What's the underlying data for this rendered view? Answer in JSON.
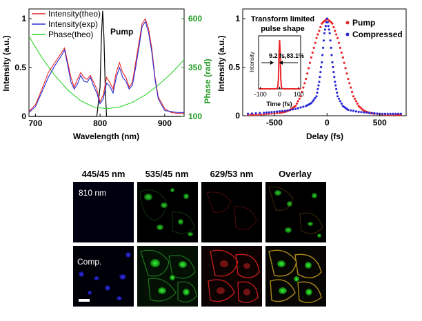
{
  "chart_data": [
    {
      "type": "line",
      "xlabel": "Wavelength (nm)",
      "ylabel": "Intensity (a.u.)",
      "ylabel_right": "Phase (rad)",
      "xlim": [
        690,
        930
      ],
      "ylim": [
        0,
        1.1
      ],
      "ylim_right": [
        100,
        650
      ],
      "x_ticks": [
        700,
        800,
        900
      ],
      "y_ticks": [
        0,
        0.5,
        1
      ],
      "y_tick_labels": [
        "0",
        "0.5",
        "1"
      ],
      "y_right_ticks": [
        100,
        350,
        600
      ],
      "legend_position": "top-left",
      "annotation": "Pump",
      "series": [
        {
          "name": "Intensity(theo)",
          "color": "#e8262a",
          "x": [
            690,
            700,
            710,
            720,
            730,
            740,
            745,
            750,
            755,
            760,
            765,
            770,
            775,
            780,
            785,
            790,
            795,
            800,
            805,
            810,
            815,
            820,
            825,
            830,
            835,
            840,
            845,
            850,
            855,
            860,
            865,
            870,
            875,
            880,
            885,
            890,
            900,
            910,
            920,
            930
          ],
          "y": [
            0.05,
            0.12,
            0.28,
            0.45,
            0.55,
            0.65,
            0.7,
            0.55,
            0.4,
            0.3,
            0.38,
            0.45,
            0.4,
            0.38,
            0.42,
            0.35,
            0.28,
            0.15,
            0.22,
            0.4,
            0.35,
            0.28,
            0.45,
            0.55,
            0.45,
            0.4,
            0.3,
            0.35,
            0.55,
            0.75,
            0.95,
            1.0,
            0.9,
            0.7,
            0.4,
            0.2,
            0.08,
            0.04,
            0.03,
            0.03
          ]
        },
        {
          "name": "Intensity(exp)",
          "color": "#2a2ad4",
          "x": [
            690,
            700,
            710,
            720,
            730,
            740,
            745,
            750,
            755,
            760,
            765,
            770,
            775,
            780,
            785,
            790,
            795,
            800,
            805,
            810,
            815,
            820,
            825,
            830,
            835,
            840,
            845,
            850,
            855,
            860,
            865,
            870,
            875,
            880,
            885,
            890,
            900,
            910,
            920,
            930
          ],
          "y": [
            0.04,
            0.1,
            0.25,
            0.4,
            0.52,
            0.62,
            0.68,
            0.52,
            0.35,
            0.28,
            0.33,
            0.42,
            0.36,
            0.35,
            0.4,
            0.31,
            0.24,
            0.13,
            0.18,
            0.34,
            0.31,
            0.24,
            0.4,
            0.5,
            0.4,
            0.36,
            0.28,
            0.32,
            0.5,
            0.7,
            0.92,
            0.97,
            0.86,
            0.66,
            0.38,
            0.18,
            0.06,
            0.05,
            0.04,
            0.04
          ]
        },
        {
          "name": "Phase(theo)",
          "color": "#2fd42f",
          "axis": "right",
          "x": [
            690,
            710,
            730,
            750,
            770,
            790,
            810,
            830,
            850,
            870,
            890,
            910,
            930
          ],
          "y": [
            510,
            400,
            310,
            235,
            180,
            148,
            140,
            148,
            172,
            210,
            260,
            320,
            390
          ]
        },
        {
          "name": "",
          "color": "#000000",
          "x": [
            690,
            790,
            795,
            800,
            802,
            804,
            806,
            808,
            810,
            815,
            820,
            930
          ],
          "y": [
            0,
            0,
            0,
            0.3,
            0.8,
            1.08,
            0.8,
            0.3,
            0,
            0,
            0,
            0
          ]
        }
      ]
    },
    {
      "type": "scatter",
      "xlabel": "Delay (fs)",
      "ylabel": "Intensity (a.u.)",
      "xlim": [
        -800,
        750
      ],
      "ylim": [
        0,
        1.1
      ],
      "x_ticks": [
        -500,
        0,
        500
      ],
      "y_ticks": [
        0,
        0.5,
        1
      ],
      "y_tick_labels": [
        "0",
        "0.5",
        "1"
      ],
      "legend_position": "top-right",
      "series": [
        {
          "name": "Pump",
          "color": "#e8262a",
          "x": [
            -750,
            -650,
            -550,
            -450,
            -400,
            -350,
            -300,
            -250,
            -200,
            -150,
            -100,
            -50,
            0,
            50,
            100,
            150,
            200,
            250,
            300,
            350,
            400,
            450,
            550,
            650,
            700
          ],
          "y": [
            0.01,
            0.01,
            0.02,
            0.03,
            0.04,
            0.06,
            0.1,
            0.2,
            0.38,
            0.6,
            0.8,
            0.95,
            1.0,
            0.95,
            0.8,
            0.6,
            0.38,
            0.2,
            0.1,
            0.05,
            0.03,
            0.02,
            0.01,
            0.01,
            0.01
          ]
        },
        {
          "name": "Compressed",
          "color": "#2a2ad4",
          "x": [
            -750,
            -600,
            -500,
            -400,
            -300,
            -200,
            -150,
            -100,
            -75,
            -50,
            -25,
            0,
            25,
            50,
            75,
            100,
            150,
            200,
            300,
            400,
            500,
            600,
            700
          ],
          "y": [
            0.02,
            0.03,
            0.04,
            0.05,
            0.07,
            0.1,
            0.13,
            0.2,
            0.35,
            0.55,
            0.85,
            1.0,
            0.85,
            0.55,
            0.35,
            0.2,
            0.1,
            0.06,
            0.04,
            0.03,
            0.02,
            0.02,
            0.02
          ]
        }
      ],
      "inset": {
        "title": "Transform limited\npulse shape",
        "xlabel": "Time (fs)",
        "ylabel": "Intensity",
        "x_ticks": [
          -100,
          0,
          100
        ],
        "xlim": [
          -110,
          110
        ],
        "annotation": "9.2 fs,83.1%",
        "color": "#e8262a",
        "x": [
          -110,
          -20,
          -10,
          -6,
          -3,
          0,
          3,
          6,
          10,
          20,
          110
        ],
        "y": [
          0,
          0,
          0.02,
          0.2,
          0.75,
          1.0,
          0.75,
          0.2,
          0.02,
          0,
          0
        ]
      }
    }
  ],
  "microscopy": {
    "columns": [
      "445/45 nm",
      "535/45 nm",
      "629/53 nm",
      "Overlay"
    ],
    "rows": [
      {
        "label": "810 nm"
      },
      {
        "label": "Comp."
      }
    ]
  }
}
